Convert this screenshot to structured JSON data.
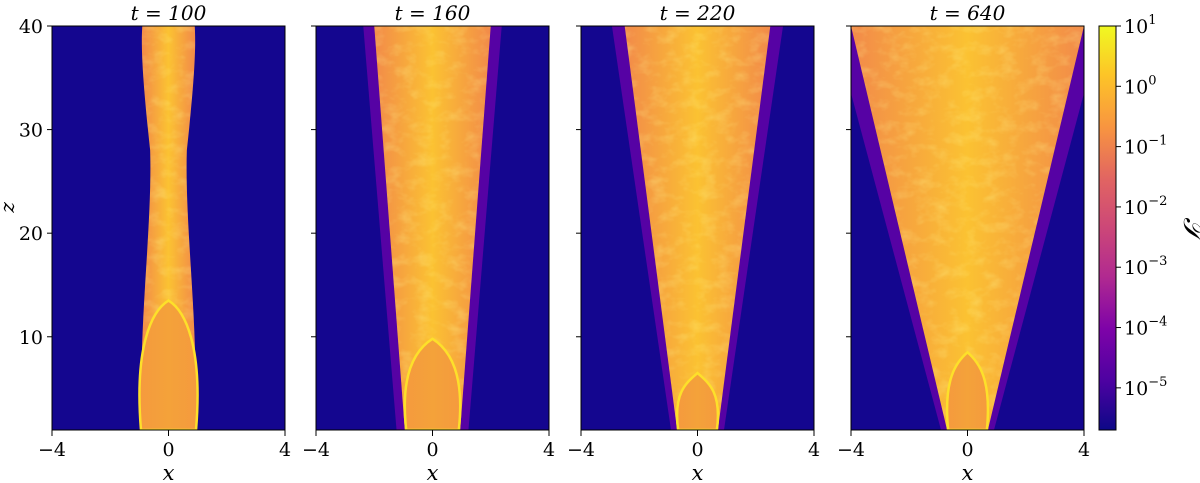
{
  "chart_data": {
    "type": "heatmap",
    "colormap": "plasma",
    "panels": [
      {
        "title": "t = 100",
        "core_top_z": 13.5,
        "jet_width_base": 0.9,
        "jet_width_top": 0.9,
        "cocoon": false
      },
      {
        "title": "t = 160",
        "core_top_z": 9.8,
        "jet_width_base": 0.95,
        "jet_width_top": 2.0,
        "cocoon": true
      },
      {
        "title": "t = 220",
        "core_top_z": 6.5,
        "jet_width_base": 0.7,
        "jet_width_top": 2.5,
        "cocoon": true
      },
      {
        "title": "t = 640",
        "core_top_z": 8.5,
        "jet_width_base": 0.7,
        "jet_width_top": 4.0,
        "cocoon": true
      }
    ],
    "x_axis": {
      "label": "x",
      "lim": [
        -4,
        4
      ],
      "ticks": [
        "−4",
        "0",
        "4"
      ]
    },
    "y_axis": {
      "label": "z",
      "lim": [
        1,
        40
      ],
      "ticks": [
        "10",
        "20",
        "30",
        "40"
      ]
    },
    "colorbar": {
      "label": "𝒯",
      "scale": "log",
      "range": [
        2e-06,
        10
      ],
      "tick_bases": [
        "10",
        "10",
        "10",
        "10",
        "10",
        "10",
        "10"
      ],
      "tick_exponents": [
        "1",
        "0",
        "−1",
        "−2",
        "−3",
        "−4",
        "−5"
      ]
    },
    "colors": {
      "background": "#14068f",
      "cocoon": "#5d02a6",
      "jet_mid": "#f0804f",
      "jet_bright": "#f9b233",
      "core": "#f4a53d",
      "core_edge": "#fde02a"
    }
  }
}
